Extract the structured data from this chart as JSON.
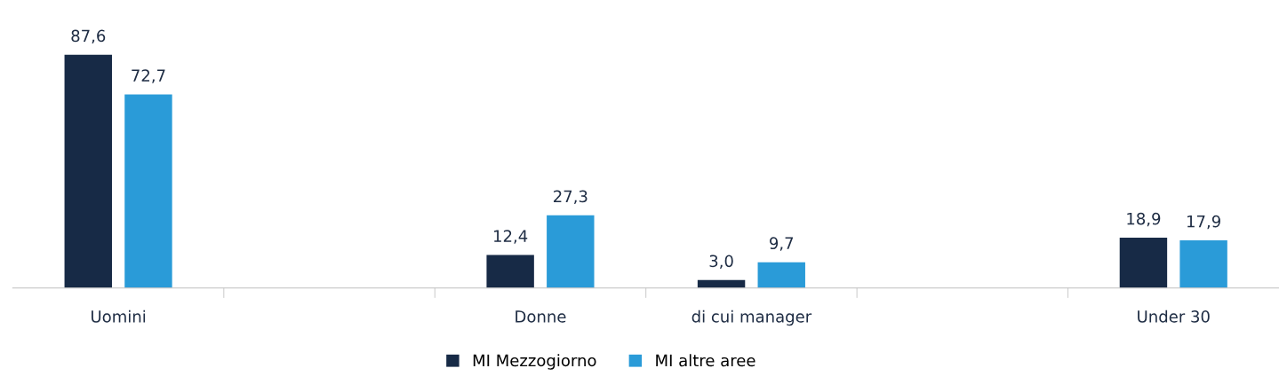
{
  "chart_data": {
    "type": "bar",
    "categories": [
      "Uomini",
      null,
      "Donne",
      "di cui manager",
      null,
      "Under 30"
    ],
    "series": [
      {
        "name": "MI Mezzogiorno",
        "color": "#172a46",
        "values": [
          87.6,
          null,
          12.4,
          3.0,
          null,
          18.9
        ],
        "value_labels": [
          "87,6",
          null,
          "12,4",
          "3,0",
          null,
          "18,9"
        ]
      },
      {
        "name": "MI altre aree",
        "color": "#2a9bd8",
        "values": [
          72.7,
          null,
          27.3,
          9.7,
          null,
          17.9
        ],
        "value_labels": [
          "72,7",
          null,
          "27,3",
          "9,7",
          null,
          "17,9"
        ]
      }
    ],
    "legend": "bottom",
    "grid": false
  }
}
